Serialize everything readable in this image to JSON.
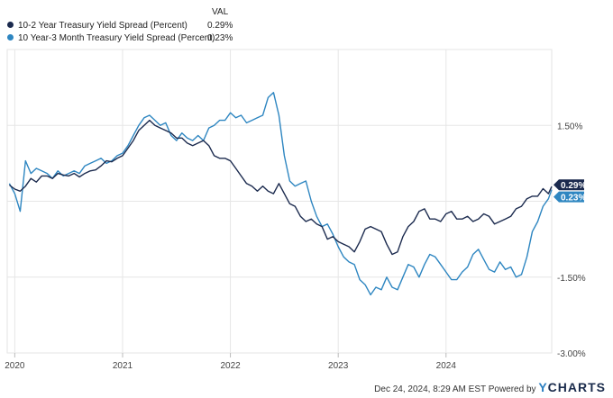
{
  "legend": {
    "header": "VAL",
    "items": [
      {
        "name": "10-2 Year Treasury Yield Spread (Percent)",
        "value": "0.29%",
        "color": "#1b2a4e"
      },
      {
        "name": "10 Year-3 Month Treasury Yield Spread (Percent)",
        "value": "0.23%",
        "color": "#2e86c1"
      }
    ]
  },
  "footer": {
    "timestamp": "Dec 24, 2024, 8:29 AM EST Powered by",
    "brand_y": "Y",
    "brand_rest": "CHARTS"
  },
  "chart_data": {
    "type": "line",
    "x_tick_labels": [
      "2020",
      "2021",
      "2022",
      "2023",
      "2024"
    ],
    "y_tick_labels": [
      "1.50%",
      "-1.50%",
      "-3.00%"
    ],
    "y_ticks": [
      1.5,
      -1.5,
      -3.0
    ],
    "xlim": [
      2019.93,
      2024.98
    ],
    "ylim": [
      -3.0,
      3.0
    ],
    "grid": true,
    "legend_position": "top-left",
    "end_labels": [
      "0.29%",
      "0.23%"
    ],
    "series": [
      {
        "name": "10-2 Year Treasury Yield Spread (Percent)",
        "color": "#1b2a4e",
        "x": [
          2019.95,
          2020.0,
          2020.05,
          2020.1,
          2020.15,
          2020.2,
          2020.25,
          2020.3,
          2020.35,
          2020.4,
          2020.45,
          2020.5,
          2020.55,
          2020.6,
          2020.65,
          2020.7,
          2020.75,
          2020.8,
          2020.85,
          2020.9,
          2020.95,
          2021.0,
          2021.05,
          2021.1,
          2021.15,
          2021.2,
          2021.25,
          2021.3,
          2021.35,
          2021.4,
          2021.45,
          2021.5,
          2021.55,
          2021.6,
          2021.65,
          2021.7,
          2021.75,
          2021.8,
          2021.85,
          2021.9,
          2021.95,
          2022.0,
          2022.05,
          2022.1,
          2022.15,
          2022.2,
          2022.25,
          2022.3,
          2022.35,
          2022.4,
          2022.45,
          2022.5,
          2022.55,
          2022.6,
          2022.65,
          2022.7,
          2022.75,
          2022.8,
          2022.85,
          2022.9,
          2022.95,
          2023.0,
          2023.05,
          2023.1,
          2023.15,
          2023.2,
          2023.25,
          2023.3,
          2023.35,
          2023.4,
          2023.45,
          2023.5,
          2023.55,
          2023.6,
          2023.65,
          2023.7,
          2023.75,
          2023.8,
          2023.85,
          2023.9,
          2023.95,
          2024.0,
          2024.05,
          2024.1,
          2024.15,
          2024.2,
          2024.25,
          2024.3,
          2024.35,
          2024.4,
          2024.45,
          2024.5,
          2024.55,
          2024.6,
          2024.65,
          2024.7,
          2024.75,
          2024.8,
          2024.85,
          2024.9,
          2024.95,
          2024.98
        ],
        "values": [
          0.32,
          0.24,
          0.2,
          0.3,
          0.45,
          0.38,
          0.5,
          0.5,
          0.45,
          0.55,
          0.52,
          0.5,
          0.55,
          0.48,
          0.55,
          0.6,
          0.62,
          0.7,
          0.8,
          0.78,
          0.85,
          0.9,
          1.05,
          1.2,
          1.4,
          1.5,
          1.6,
          1.5,
          1.45,
          1.4,
          1.35,
          1.25,
          1.25,
          1.15,
          1.1,
          1.15,
          1.2,
          1.1,
          0.9,
          0.85,
          0.85,
          0.8,
          0.65,
          0.5,
          0.35,
          0.3,
          0.2,
          0.3,
          0.2,
          0.15,
          0.35,
          0.15,
          -0.05,
          -0.1,
          -0.3,
          -0.4,
          -0.35,
          -0.45,
          -0.5,
          -0.75,
          -0.7,
          -0.8,
          -0.85,
          -0.9,
          -1.0,
          -0.8,
          -0.55,
          -0.5,
          -0.55,
          -0.6,
          -0.85,
          -1.05,
          -1.0,
          -0.7,
          -0.5,
          -0.4,
          -0.2,
          -0.15,
          -0.35,
          -0.35,
          -0.4,
          -0.25,
          -0.2,
          -0.35,
          -0.35,
          -0.3,
          -0.4,
          -0.35,
          -0.25,
          -0.3,
          -0.45,
          -0.4,
          -0.35,
          -0.3,
          -0.15,
          -0.1,
          0.05,
          0.1,
          0.1,
          0.25,
          0.15,
          0.29
        ]
      },
      {
        "name": "10 Year-3 Month Treasury Yield Spread (Percent)",
        "color": "#2e86c1",
        "x": [
          2019.95,
          2020.0,
          2020.05,
          2020.1,
          2020.15,
          2020.2,
          2020.25,
          2020.3,
          2020.35,
          2020.4,
          2020.45,
          2020.5,
          2020.55,
          2020.6,
          2020.65,
          2020.7,
          2020.75,
          2020.8,
          2020.85,
          2020.9,
          2020.95,
          2021.0,
          2021.05,
          2021.1,
          2021.15,
          2021.2,
          2021.25,
          2021.3,
          2021.35,
          2021.4,
          2021.45,
          2021.5,
          2021.55,
          2021.6,
          2021.65,
          2021.7,
          2021.75,
          2021.8,
          2021.85,
          2021.9,
          2021.95,
          2022.0,
          2022.05,
          2022.1,
          2022.15,
          2022.2,
          2022.25,
          2022.3,
          2022.35,
          2022.4,
          2022.45,
          2022.5,
          2022.55,
          2022.6,
          2022.65,
          2022.7,
          2022.75,
          2022.8,
          2022.85,
          2022.9,
          2022.95,
          2023.0,
          2023.05,
          2023.1,
          2023.15,
          2023.2,
          2023.25,
          2023.3,
          2023.35,
          2023.4,
          2023.45,
          2023.5,
          2023.55,
          2023.6,
          2023.65,
          2023.7,
          2023.75,
          2023.8,
          2023.85,
          2023.9,
          2023.95,
          2024.0,
          2024.05,
          2024.1,
          2024.15,
          2024.2,
          2024.25,
          2024.3,
          2024.35,
          2024.4,
          2024.45,
          2024.5,
          2024.55,
          2024.6,
          2024.65,
          2024.7,
          2024.75,
          2024.8,
          2024.85,
          2024.9,
          2024.95,
          2024.98
        ],
        "values": [
          0.35,
          0.15,
          -0.2,
          0.8,
          0.55,
          0.65,
          0.6,
          0.55,
          0.45,
          0.6,
          0.5,
          0.55,
          0.6,
          0.55,
          0.7,
          0.75,
          0.8,
          0.85,
          0.75,
          0.8,
          0.9,
          0.95,
          1.1,
          1.3,
          1.5,
          1.65,
          1.7,
          1.6,
          1.5,
          1.55,
          1.3,
          1.2,
          1.35,
          1.25,
          1.2,
          1.3,
          1.2,
          1.45,
          1.5,
          1.6,
          1.6,
          1.75,
          1.65,
          1.7,
          1.55,
          1.6,
          1.65,
          1.7,
          2.05,
          2.15,
          1.7,
          0.9,
          0.4,
          0.3,
          0.35,
          0.4,
          0.0,
          -0.3,
          -0.5,
          -0.45,
          -0.65,
          -0.9,
          -1.1,
          -1.2,
          -1.25,
          -1.55,
          -1.65,
          -1.85,
          -1.7,
          -1.75,
          -1.5,
          -1.7,
          -1.75,
          -1.5,
          -1.25,
          -1.3,
          -1.5,
          -1.25,
          -1.05,
          -1.1,
          -1.25,
          -1.4,
          -1.55,
          -1.55,
          -1.4,
          -1.3,
          -1.05,
          -0.95,
          -1.15,
          -1.35,
          -1.4,
          -1.2,
          -1.35,
          -1.3,
          -1.5,
          -1.45,
          -1.1,
          -0.6,
          -0.4,
          -0.1,
          0.05,
          0.23
        ]
      }
    ]
  }
}
